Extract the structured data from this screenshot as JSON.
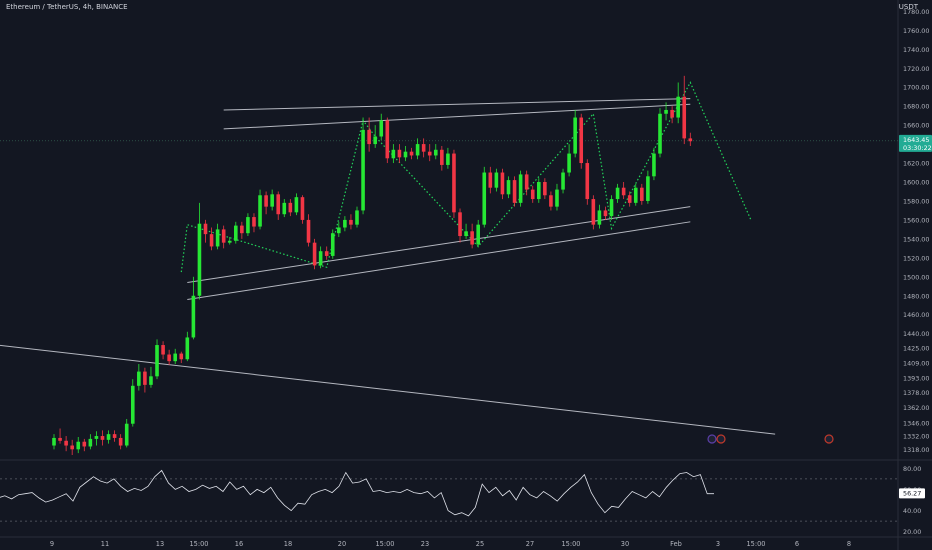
{
  "header": {
    "title": "Ethereum / TetherUS, 4h, BINANCE",
    "currency": "USDT"
  },
  "price_badge": {
    "value": "1643.45",
    "countdown": "03:30:22",
    "color": "#22ab94"
  },
  "rsi_badge": {
    "value": "56.27"
  },
  "colors": {
    "background": "#131722",
    "up": "#26e834",
    "down": "#f23645",
    "zigzag": "#22d45a",
    "line": "#d1d4dc",
    "rsi": "#e0e3eb",
    "axis_text": "#b2b5be"
  },
  "chart_data": {
    "type": "candlestick",
    "title": "Ethereum / TetherUS, 4h, BINANCE",
    "price_axis": {
      "ticks": [
        "1780.00",
        "1760.00",
        "1740.00",
        "1720.00",
        "1700.00",
        "1680.00",
        "1660.00",
        "1640.00",
        "1620.00",
        "1600.00",
        "1580.00",
        "1560.00",
        "1540.00",
        "1520.00",
        "1500.00",
        "1480.00",
        "1460.00",
        "1440.00",
        "1425.00",
        "1409.00",
        "1393.00",
        "1378.00",
        "1362.00",
        "1346.00",
        "1332.00",
        "1318.00"
      ]
    },
    "time_axis": {
      "ticks": [
        "9",
        "11",
        "13",
        "15:00",
        "16",
        "18",
        "20",
        "15:00",
        "23",
        "25",
        "27",
        "15:00",
        "30",
        "Feb",
        "3",
        "15:00",
        "6",
        "8"
      ]
    },
    "candles": [
      [
        1322,
        1330,
        1318,
        1334
      ],
      [
        1330,
        1327,
        1324,
        1340
      ],
      [
        1327,
        1322,
        1316,
        1332
      ],
      [
        1322,
        1318,
        1312,
        1328
      ],
      [
        1318,
        1326,
        1314,
        1331
      ],
      [
        1326,
        1321,
        1316,
        1329
      ],
      [
        1321,
        1329,
        1318,
        1334
      ],
      [
        1329,
        1332,
        1322,
        1337
      ],
      [
        1332,
        1328,
        1322,
        1338
      ],
      [
        1328,
        1334,
        1324,
        1338
      ],
      [
        1334,
        1330,
        1326,
        1338
      ],
      [
        1330,
        1322,
        1318,
        1334
      ],
      [
        1322,
        1345,
        1320,
        1350
      ],
      [
        1345,
        1385,
        1342,
        1392
      ],
      [
        1385,
        1400,
        1380,
        1408
      ],
      [
        1400,
        1386,
        1378,
        1404
      ],
      [
        1386,
        1395,
        1383,
        1405
      ],
      [
        1395,
        1428,
        1392,
        1434
      ],
      [
        1428,
        1418,
        1413,
        1432
      ],
      [
        1418,
        1411,
        1407,
        1423
      ],
      [
        1411,
        1419,
        1408,
        1424
      ],
      [
        1419,
        1413,
        1409,
        1421
      ],
      [
        1413,
        1436,
        1411,
        1442
      ],
      [
        1436,
        1480,
        1434,
        1500
      ],
      [
        1480,
        1556,
        1476,
        1578
      ],
      [
        1556,
        1545,
        1536,
        1560
      ],
      [
        1545,
        1532,
        1528,
        1552
      ],
      [
        1532,
        1550,
        1529,
        1556
      ],
      [
        1550,
        1536,
        1530,
        1554
      ],
      [
        1536,
        1538,
        1534,
        1542
      ],
      [
        1538,
        1554,
        1535,
        1558
      ],
      [
        1554,
        1546,
        1540,
        1558
      ],
      [
        1546,
        1563,
        1543,
        1567
      ],
      [
        1563,
        1553,
        1547,
        1567
      ],
      [
        1553,
        1586,
        1550,
        1592
      ],
      [
        1586,
        1574,
        1566,
        1590
      ],
      [
        1574,
        1587,
        1570,
        1592
      ],
      [
        1587,
        1566,
        1560,
        1590
      ],
      [
        1566,
        1578,
        1563,
        1582
      ],
      [
        1578,
        1568,
        1564,
        1582
      ],
      [
        1568,
        1584,
        1565,
        1588
      ],
      [
        1584,
        1560,
        1556,
        1586
      ],
      [
        1560,
        1536,
        1532,
        1566
      ],
      [
        1536,
        1512,
        1508,
        1540
      ],
      [
        1512,
        1527,
        1509,
        1532
      ],
      [
        1527,
        1522,
        1518,
        1532
      ],
      [
        1522,
        1546,
        1519,
        1550
      ],
      [
        1546,
        1552,
        1542,
        1558
      ],
      [
        1552,
        1560,
        1548,
        1564
      ],
      [
        1560,
        1555,
        1550,
        1566
      ],
      [
        1555,
        1570,
        1552,
        1574
      ],
      [
        1570,
        1655,
        1566,
        1668
      ],
      [
        1655,
        1640,
        1632,
        1668
      ],
      [
        1640,
        1648,
        1636,
        1660
      ],
      [
        1648,
        1665,
        1644,
        1672
      ],
      [
        1665,
        1625,
        1620,
        1668
      ],
      [
        1625,
        1634,
        1620,
        1640
      ],
      [
        1634,
        1626,
        1620,
        1640
      ],
      [
        1626,
        1632,
        1622,
        1638
      ],
      [
        1632,
        1628,
        1624,
        1636
      ],
      [
        1628,
        1640,
        1624,
        1646
      ],
      [
        1640,
        1632,
        1626,
        1646
      ],
      [
        1632,
        1628,
        1622,
        1640
      ],
      [
        1628,
        1634,
        1624,
        1640
      ],
      [
        1634,
        1618,
        1612,
        1638
      ],
      [
        1618,
        1630,
        1614,
        1636
      ],
      [
        1630,
        1568,
        1562,
        1634
      ],
      [
        1568,
        1543,
        1536,
        1572
      ],
      [
        1543,
        1548,
        1540,
        1556
      ],
      [
        1548,
        1534,
        1530,
        1556
      ],
      [
        1534,
        1555,
        1531,
        1560
      ],
      [
        1555,
        1610,
        1552,
        1616
      ],
      [
        1610,
        1594,
        1588,
        1616
      ],
      [
        1594,
        1610,
        1590,
        1614
      ],
      [
        1610,
        1587,
        1582,
        1614
      ],
      [
        1587,
        1602,
        1583,
        1606
      ],
      [
        1602,
        1578,
        1574,
        1606
      ],
      [
        1578,
        1608,
        1574,
        1612
      ],
      [
        1608,
        1592,
        1586,
        1612
      ],
      [
        1592,
        1582,
        1578,
        1596
      ],
      [
        1582,
        1600,
        1578,
        1604
      ],
      [
        1600,
        1586,
        1582,
        1604
      ],
      [
        1586,
        1574,
        1570,
        1590
      ],
      [
        1574,
        1592,
        1570,
        1598
      ],
      [
        1592,
        1610,
        1588,
        1614
      ],
      [
        1610,
        1630,
        1606,
        1640
      ],
      [
        1630,
        1668,
        1626,
        1676
      ],
      [
        1668,
        1620,
        1614,
        1672
      ],
      [
        1620,
        1582,
        1576,
        1624
      ],
      [
        1582,
        1555,
        1550,
        1586
      ],
      [
        1555,
        1570,
        1551,
        1576
      ],
      [
        1570,
        1564,
        1560,
        1574
      ],
      [
        1564,
        1582,
        1560,
        1586
      ],
      [
        1582,
        1594,
        1578,
        1598
      ],
      [
        1594,
        1586,
        1582,
        1600
      ],
      [
        1586,
        1578,
        1574,
        1590
      ],
      [
        1578,
        1594,
        1575,
        1598
      ],
      [
        1594,
        1580,
        1576,
        1598
      ],
      [
        1580,
        1606,
        1577,
        1612
      ],
      [
        1606,
        1630,
        1602,
        1636
      ],
      [
        1630,
        1672,
        1626,
        1678
      ],
      [
        1672,
        1676,
        1665,
        1684
      ],
      [
        1676,
        1668,
        1662,
        1680
      ],
      [
        1668,
        1690,
        1662,
        1705
      ],
      [
        1690,
        1646,
        1640,
        1712
      ],
      [
        1646,
        1643,
        1638,
        1652
      ]
    ],
    "rsi": {
      "ticks": [
        "80.00",
        "60.00",
        "40.00",
        "20.00"
      ],
      "levels": [
        70,
        30
      ],
      "values": [
        52,
        54,
        51,
        55,
        56,
        57,
        52,
        48,
        50,
        53,
        56,
        49,
        62,
        67,
        72,
        68,
        66,
        70,
        63,
        58,
        61,
        59,
        63,
        72,
        78,
        66,
        60,
        63,
        58,
        60,
        64,
        61,
        63,
        58,
        67,
        60,
        63,
        55,
        60,
        57,
        62,
        52,
        45,
        40,
        47,
        46,
        55,
        58,
        60,
        57,
        63,
        76,
        66,
        67,
        70,
        58,
        59,
        57,
        58,
        57,
        60,
        57,
        56,
        58,
        52,
        57,
        40,
        36,
        38,
        35,
        43,
        65,
        57,
        62,
        54,
        59,
        50,
        62,
        55,
        52,
        58,
        54,
        49,
        56,
        62,
        67,
        74,
        57,
        46,
        38,
        44,
        43,
        51,
        58,
        55,
        52,
        58,
        53,
        62,
        69,
        75,
        76,
        72,
        74,
        56,
        56
      ]
    },
    "zigzag_points": [
      [
        21,
        1505
      ],
      [
        22,
        1555
      ],
      [
        45,
        1510
      ],
      [
        51,
        1665
      ],
      [
        53,
        1648
      ],
      [
        70,
        1532
      ],
      [
        89,
        1672
      ],
      [
        92,
        1551
      ],
      [
        105,
        1705
      ],
      [
        115,
        1560
      ]
    ],
    "channel_lines": [
      {
        "x1": 28,
        "y1": 1676,
        "x2": 105,
        "y2": 1688
      },
      {
        "x1": 28,
        "y1": 1656,
        "x2": 105,
        "y2": 1682
      },
      {
        "x1": 22,
        "y1": 1494,
        "x2": 105,
        "y2": 1574
      },
      {
        "x1": 22,
        "y1": 1476,
        "x2": 105,
        "y2": 1558
      },
      {
        "x1": -23,
        "y1": 1438,
        "x2": 119,
        "y2": 1334
      }
    ],
    "ylim": [
      1312,
      1792
    ],
    "rsi_ylim": [
      15,
      85
    ]
  }
}
